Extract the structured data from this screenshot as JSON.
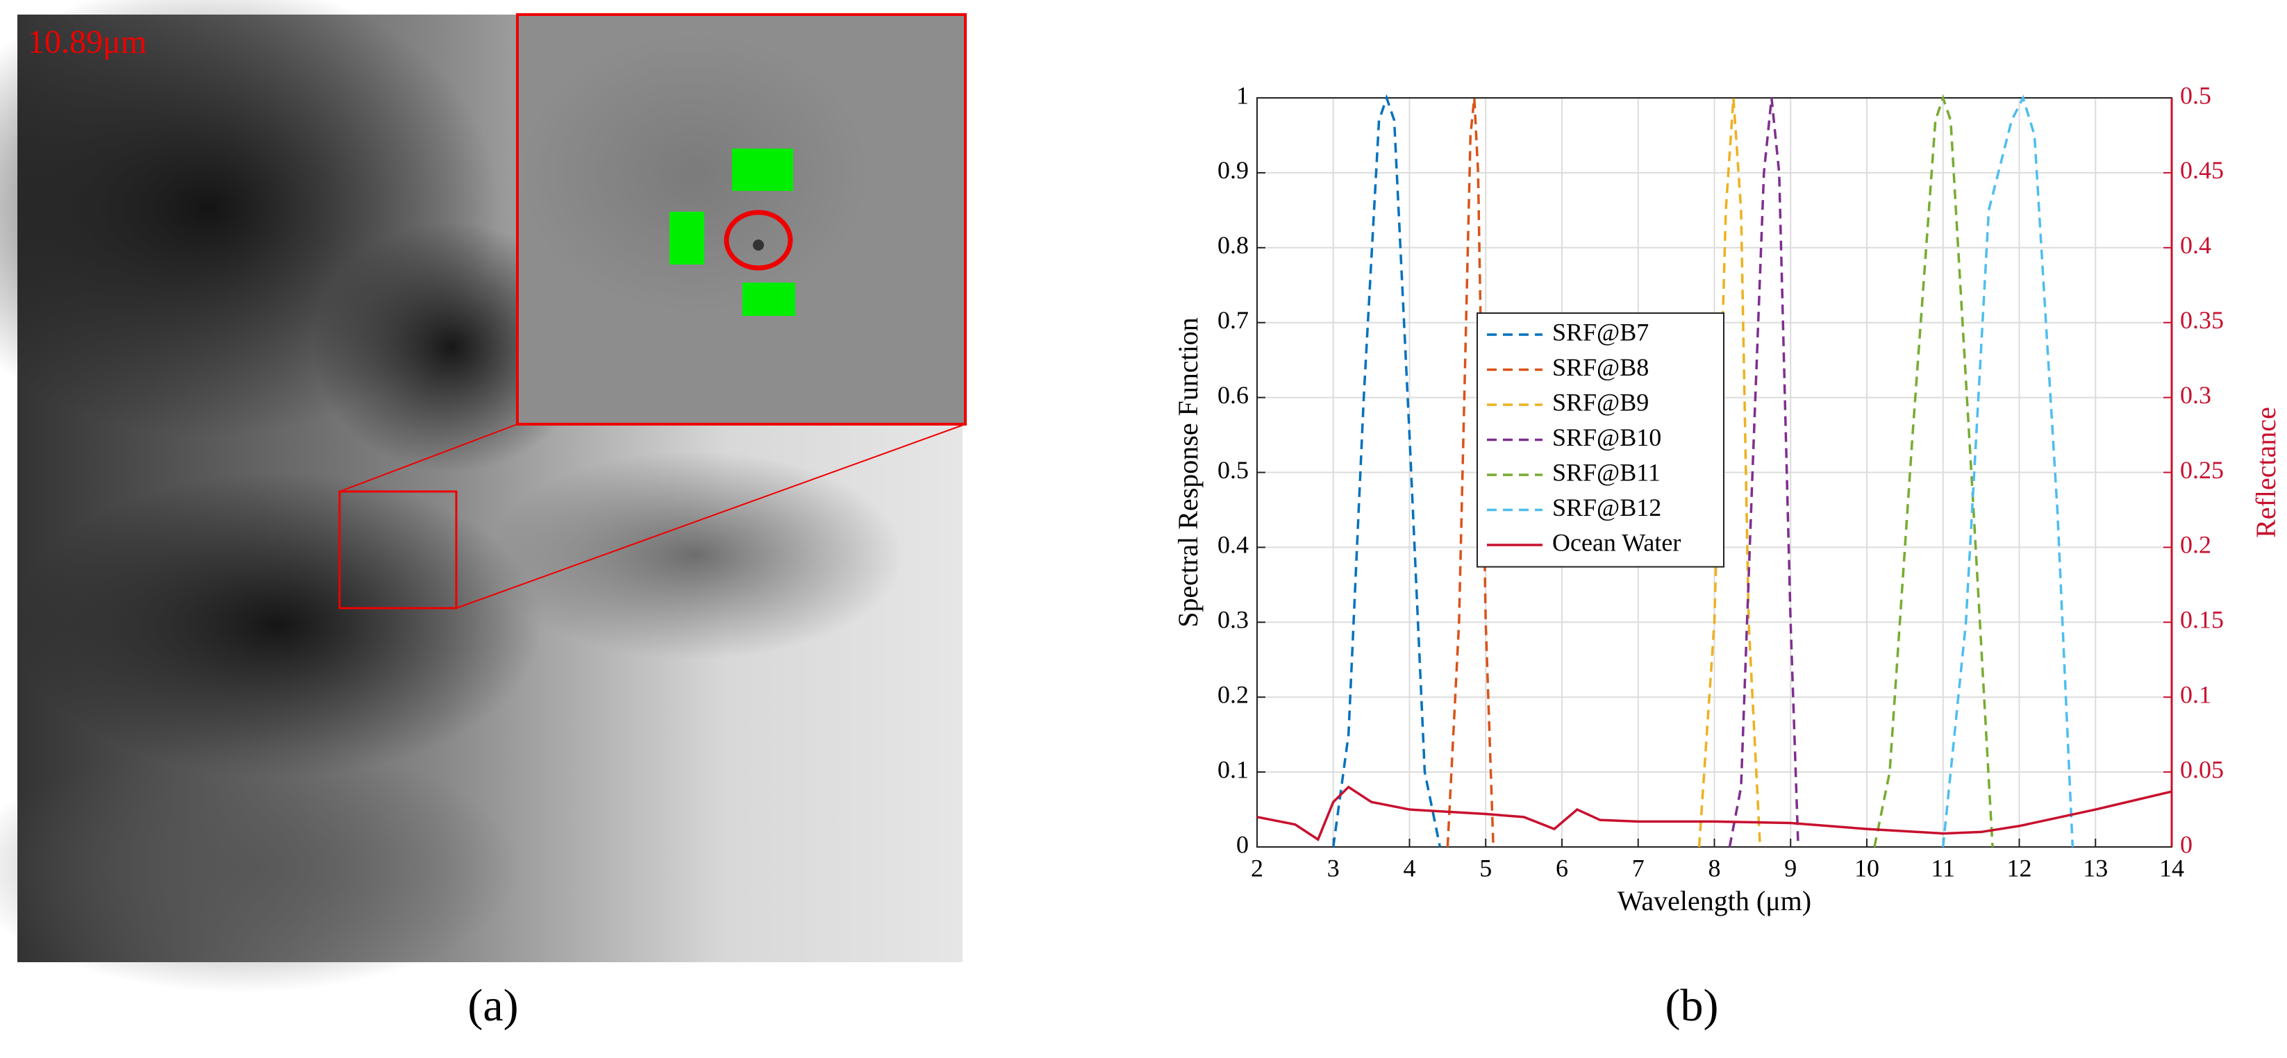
{
  "panel_a": {
    "band_label": "10.89μm",
    "caption": "(a)"
  },
  "panel_b": {
    "caption": "(b)"
  },
  "chart_data": {
    "type": "line",
    "xlabel": "Wavelength (μm)",
    "ylabel": "Spectral Response Function",
    "y2label": "Reflectance",
    "xlim": [
      2,
      14
    ],
    "xticks": [
      2,
      3,
      4,
      5,
      6,
      7,
      8,
      9,
      10,
      11,
      12,
      13,
      14
    ],
    "ylim": [
      0,
      1
    ],
    "yticks": [
      0,
      0.1,
      0.2,
      0.3,
      0.4,
      0.5,
      0.6,
      0.7,
      0.8,
      0.9,
      1
    ],
    "y2lim": [
      0,
      0.5
    ],
    "y2ticks": [
      0,
      0.05,
      0.1,
      0.15,
      0.2,
      0.25,
      0.3,
      0.35,
      0.4,
      0.45,
      0.5
    ],
    "y2color": "#c8102e",
    "grid": true,
    "legend": "center",
    "series": [
      {
        "name": "SRF@B7",
        "color": "#0072BD",
        "linestyle": "dashed",
        "x": [
          3.0,
          3.2,
          3.4,
          3.6,
          3.7,
          3.8,
          4.0,
          4.2,
          4.4
        ],
        "values": [
          0,
          0.15,
          0.6,
          0.97,
          1,
          0.97,
          0.55,
          0.1,
          0
        ]
      },
      {
        "name": "SRF@B8",
        "color": "#D95319",
        "linestyle": "dashed",
        "x": [
          4.5,
          4.65,
          4.8,
          4.85,
          4.9,
          5.0,
          5.1
        ],
        "values": [
          0,
          0.3,
          0.95,
          1,
          0.9,
          0.3,
          0
        ]
      },
      {
        "name": "SRF@B9",
        "color": "#EDB120",
        "linestyle": "dashed",
        "x": [
          7.8,
          8.0,
          8.15,
          8.25,
          8.35,
          8.45,
          8.6
        ],
        "values": [
          0,
          0.3,
          0.85,
          1,
          0.85,
          0.3,
          0
        ]
      },
      {
        "name": "SRF@B10",
        "color": "#7E2F8E",
        "linestyle": "dashed",
        "x": [
          8.2,
          8.35,
          8.5,
          8.65,
          8.75,
          8.85,
          9.0,
          9.1
        ],
        "values": [
          0,
          0.08,
          0.5,
          0.9,
          1,
          0.9,
          0.3,
          0
        ]
      },
      {
        "name": "SRF@B11",
        "color": "#77AC30",
        "linestyle": "dashed",
        "x": [
          10.1,
          10.3,
          10.6,
          10.9,
          11.0,
          11.1,
          11.4,
          11.65
        ],
        "values": [
          0,
          0.1,
          0.55,
          0.97,
          1,
          0.97,
          0.45,
          0
        ]
      },
      {
        "name": "SRF@B12",
        "color": "#4DBEEE",
        "linestyle": "dashed",
        "x": [
          11.0,
          11.3,
          11.6,
          11.9,
          12.05,
          12.2,
          12.5,
          12.7
        ],
        "values": [
          0,
          0.3,
          0.85,
          0.97,
          1,
          0.95,
          0.45,
          0
        ]
      },
      {
        "name": "Ocean Water",
        "color": "#c8102e",
        "linestyle": "solid",
        "axis": "y2",
        "x": [
          2,
          2.5,
          2.8,
          3.0,
          3.2,
          3.5,
          4,
          5,
          5.5,
          5.9,
          6.2,
          6.5,
          7,
          8,
          9,
          10,
          11,
          11.5,
          12,
          13,
          14
        ],
        "values": [
          0.02,
          0.015,
          0.005,
          0.03,
          0.04,
          0.03,
          0.025,
          0.022,
          0.02,
          0.012,
          0.025,
          0.018,
          0.017,
          0.017,
          0.016,
          0.012,
          0.009,
          0.01,
          0.014,
          0.025,
          0.037
        ]
      }
    ]
  }
}
